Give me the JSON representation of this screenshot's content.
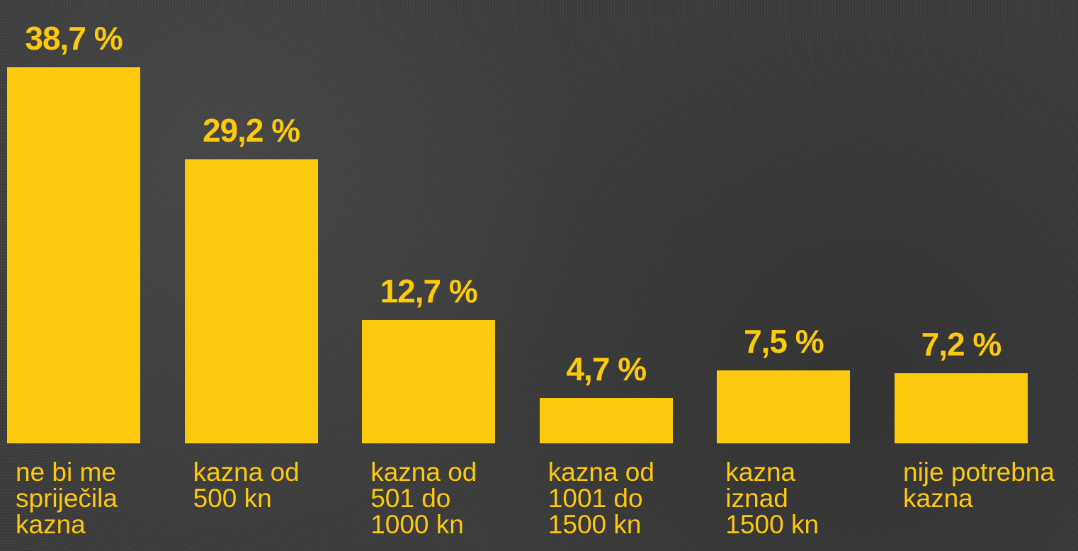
{
  "chart_data": {
    "type": "bar",
    "categories": [
      "ne bi me\nspriječila\nkazna",
      "kazna od\n500 kn",
      "kazna od\n501 do\n1000 kn",
      "kazna od\n1001 do\n1500 kn",
      "kazna\niznad\n1500 kn",
      "nije potrebna\nkazna"
    ],
    "values": [
      38.7,
      29.2,
      12.7,
      4.7,
      7.5,
      7.2
    ],
    "value_labels": [
      "38,7 %",
      "29,2 %",
      "12,7 %",
      "4,7 %",
      "7,5 %",
      "7,2 %"
    ],
    "color": "#fdc90c"
  }
}
